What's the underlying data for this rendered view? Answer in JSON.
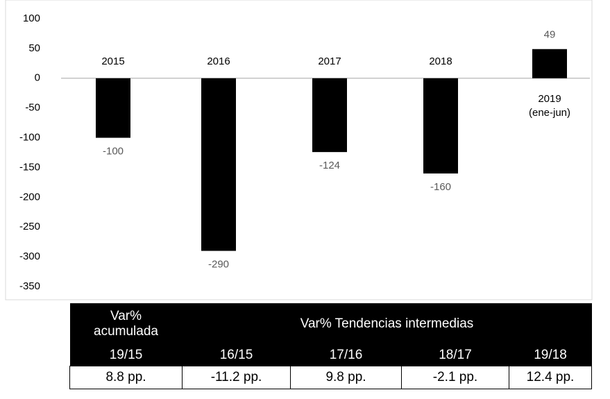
{
  "chart_data": {
    "type": "bar",
    "categories": [
      "2015",
      "2016",
      "2017",
      "2018",
      "2019\n(ene-jun)"
    ],
    "values": [
      -100,
      -290,
      -124,
      -160,
      49
    ],
    "color": "#000000",
    "ylim": [
      -350,
      100
    ],
    "yticks": [
      -350,
      -300,
      -250,
      -200,
      -150,
      -100,
      -50,
      0,
      50,
      100
    ]
  },
  "table": {
    "header": [
      "Var%\nacumulada",
      "Var% Tendencias intermedias"
    ],
    "subheader": [
      "19/15",
      "16/15",
      "17/16",
      "18/17",
      "19/18"
    ],
    "rows": [
      [
        "8.8 pp.",
        "-11.2 pp.",
        "9.8 pp.",
        "-2.1 pp.",
        "12.4 pp."
      ]
    ]
  }
}
